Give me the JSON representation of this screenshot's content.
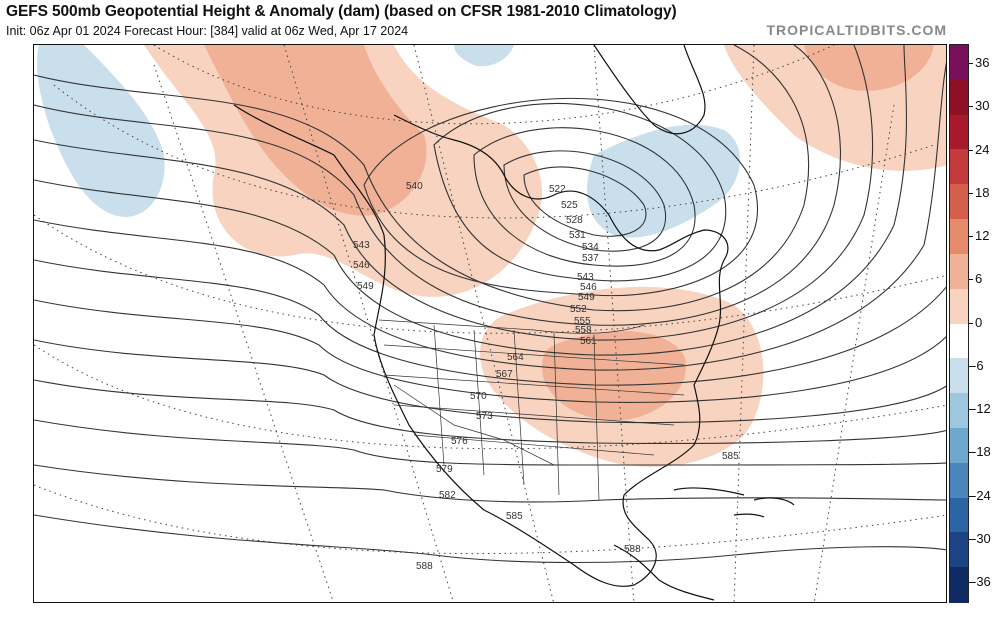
{
  "header": {
    "title": "GEFS 500mb Geopotential Height & Anomaly (dam) (based on CFSR 1981-2010 Climatology)",
    "subtitle": "Init: 06z Apr 01 2024   Forecast Hour: [384]   valid at 06z Wed, Apr 17 2024",
    "credit": "TROPICALTIDBITS.COM"
  },
  "colorbar": {
    "ticks": [
      "36",
      "30",
      "24",
      "18",
      "12",
      "6",
      "0",
      "-6",
      "-12",
      "-18",
      "-24",
      "-30",
      "-36"
    ],
    "colors": [
      "#7a0f5c",
      "#8e1025",
      "#a8192b",
      "#c23b3a",
      "#d4604c",
      "#e58a6a",
      "#f1b196",
      "#f8d3bf",
      "#ffffff",
      "#c9e0ec",
      "#9cc7de",
      "#6fa7cd",
      "#4a86bc",
      "#2d64a3",
      "#1c4485",
      "#102a66"
    ]
  },
  "contour_labels": [
    {
      "text": "522"
    },
    {
      "text": "525"
    },
    {
      "text": "528"
    },
    {
      "text": "531"
    },
    {
      "text": "534"
    },
    {
      "text": "537"
    },
    {
      "text": "540"
    },
    {
      "text": "543"
    },
    {
      "text": "543"
    },
    {
      "text": "546"
    },
    {
      "text": "546"
    },
    {
      "text": "549"
    },
    {
      "text": "549"
    },
    {
      "text": "552"
    },
    {
      "text": "555"
    },
    {
      "text": "558"
    },
    {
      "text": "561"
    },
    {
      "text": "564"
    },
    {
      "text": "567"
    },
    {
      "text": "570"
    },
    {
      "text": "573"
    },
    {
      "text": "576"
    },
    {
      "text": "579"
    },
    {
      "text": "582"
    },
    {
      "text": "585"
    },
    {
      "text": "585"
    },
    {
      "text": "588"
    },
    {
      "text": "588"
    }
  ]
}
